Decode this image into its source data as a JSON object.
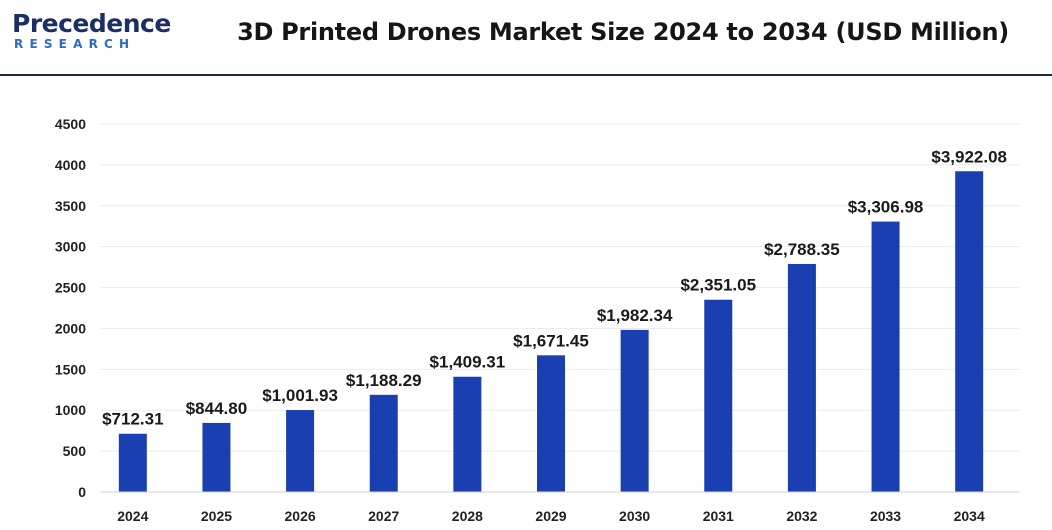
{
  "brand": {
    "logo_main": "Precedence",
    "logo_sub": "RESEARCH"
  },
  "chart_data": {
    "type": "bar",
    "title": "3D Printed Drones Market Size 2024 to 2034 (USD Million)",
    "xlabel": "",
    "ylabel": "",
    "categories": [
      "2024",
      "2025",
      "2026",
      "2027",
      "2028",
      "2029",
      "2030",
      "2031",
      "2032",
      "2033",
      "2034"
    ],
    "values": [
      712.31,
      844.8,
      1001.93,
      1188.29,
      1409.31,
      1671.45,
      1982.34,
      2351.05,
      2788.35,
      3306.98,
      3922.08
    ],
    "data_labels": [
      "$712.31",
      "$844.80",
      "$1,001.93",
      "$1,188.29",
      "$1,409.31",
      "$1,671.45",
      "$1,982.34",
      "$2,351.05",
      "$2,788.35",
      "$3,306.98",
      "$3,922.08"
    ],
    "ylim": [
      0,
      4500
    ],
    "yticks": [
      "0",
      "500",
      "1000",
      "1500",
      "2000",
      "2500",
      "3000",
      "3500",
      "4000",
      "4500"
    ],
    "grid": true,
    "legend": "none",
    "bar_color": "#1a3fb0"
  }
}
